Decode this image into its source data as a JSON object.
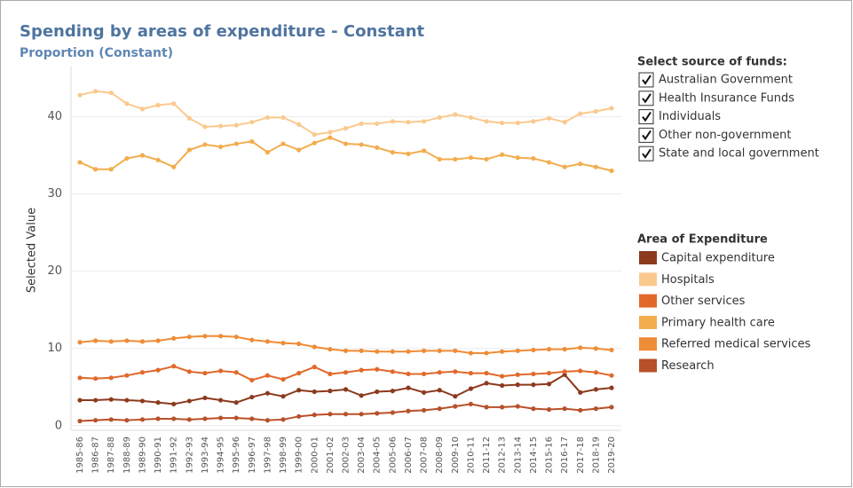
{
  "chart_data": {
    "type": "line",
    "title": "Spending by areas of expenditure - Constant",
    "subtitle": "Proportion (Constant)",
    "y_label": "Selected Value",
    "categories": [
      "1985-86",
      "1986-87",
      "1987-88",
      "1988-89",
      "1989-90",
      "1990-91",
      "1991-92",
      "1992-93",
      "1993-94",
      "1994-95",
      "1995-96",
      "1996-97",
      "1997-98",
      "1998-99",
      "1999-00",
      "2000-01",
      "2001-02",
      "2002-03",
      "2003-04",
      "2004-05",
      "2005-06",
      "2006-07",
      "2007-08",
      "2008-09",
      "2009-10",
      "2010-11",
      "2011-12",
      "2012-13",
      "2013-14",
      "2014-15",
      "2015-16",
      "2016-17",
      "2017-18",
      "2018-19",
      "2019-20"
    ],
    "ylim": [
      -0.6,
      46.5
    ],
    "yticks": [
      0,
      10,
      20,
      30,
      40
    ],
    "grid": true,
    "legend_title": "Area of Expenditure",
    "series": [
      {
        "name": "Capital expenditure",
        "color": "#8c3a1e",
        "values": [
          3.3,
          3.3,
          3.4,
          3.3,
          3.2,
          3.0,
          2.8,
          3.2,
          3.6,
          3.3,
          3.0,
          3.7,
          4.2,
          3.8,
          4.6,
          4.4,
          4.5,
          4.7,
          3.9,
          4.4,
          4.5,
          4.9,
          4.3,
          4.6,
          3.8,
          4.8,
          5.5,
          5.2,
          5.3,
          5.3,
          5.4,
          6.6,
          4.3,
          4.7,
          4.9
        ]
      },
      {
        "name": "Hospitals",
        "color": "#fbc98e",
        "values": [
          42.8,
          43.3,
          43.1,
          41.7,
          41.0,
          41.5,
          41.7,
          39.8,
          38.7,
          38.8,
          38.9,
          39.3,
          39.9,
          39.9,
          39.0,
          37.7,
          38.0,
          38.5,
          39.1,
          39.1,
          39.4,
          39.3,
          39.4,
          39.9,
          40.3,
          39.9,
          39.4,
          39.2,
          39.2,
          39.4,
          39.8,
          39.3,
          40.4,
          40.7,
          41.1
        ]
      },
      {
        "name": "Other services",
        "color": "#e2682a",
        "values": [
          6.2,
          6.1,
          6.2,
          6.5,
          6.9,
          7.2,
          7.7,
          7.0,
          6.8,
          7.1,
          6.9,
          5.9,
          6.5,
          6.0,
          6.8,
          7.6,
          6.7,
          6.9,
          7.2,
          7.3,
          7.0,
          6.7,
          6.7,
          6.9,
          7.0,
          6.8,
          6.8,
          6.4,
          6.6,
          6.7,
          6.8,
          7.0,
          7.1,
          6.9,
          6.5
        ]
      },
      {
        "name": "Primary health care",
        "color": "#f2ad4e",
        "values": [
          34.1,
          33.2,
          33.2,
          34.6,
          35.0,
          34.4,
          33.5,
          35.7,
          36.4,
          36.1,
          36.5,
          36.8,
          35.4,
          36.5,
          35.7,
          36.6,
          37.3,
          36.5,
          36.4,
          36.0,
          35.4,
          35.2,
          35.6,
          34.5,
          34.5,
          34.7,
          34.5,
          35.1,
          34.7,
          34.6,
          34.1,
          33.5,
          33.9,
          33.5,
          33.0
        ]
      },
      {
        "name": "Referred medical services",
        "color": "#ef8c37",
        "values": [
          10.8,
          11.0,
          10.9,
          11.0,
          10.9,
          11.0,
          11.3,
          11.5,
          11.6,
          11.6,
          11.5,
          11.1,
          10.9,
          10.7,
          10.6,
          10.2,
          9.9,
          9.7,
          9.7,
          9.6,
          9.6,
          9.6,
          9.7,
          9.7,
          9.7,
          9.4,
          9.4,
          9.6,
          9.7,
          9.8,
          9.9,
          9.9,
          10.1,
          10.0,
          9.8
        ]
      },
      {
        "name": "Research",
        "color": "#b8502a",
        "values": [
          0.6,
          0.7,
          0.8,
          0.7,
          0.8,
          0.9,
          0.9,
          0.8,
          0.9,
          1.0,
          1.0,
          0.9,
          0.7,
          0.8,
          1.2,
          1.4,
          1.5,
          1.5,
          1.5,
          1.6,
          1.7,
          1.9,
          2.0,
          2.2,
          2.5,
          2.8,
          2.4,
          2.4,
          2.5,
          2.2,
          2.1,
          2.2,
          2.0,
          2.2,
          2.4
        ]
      }
    ]
  },
  "filter": {
    "title": "Select source of funds:",
    "options": [
      "Australian Government",
      "Health Insurance Funds",
      "Individuals",
      "Other non-government",
      "State and local government"
    ]
  }
}
